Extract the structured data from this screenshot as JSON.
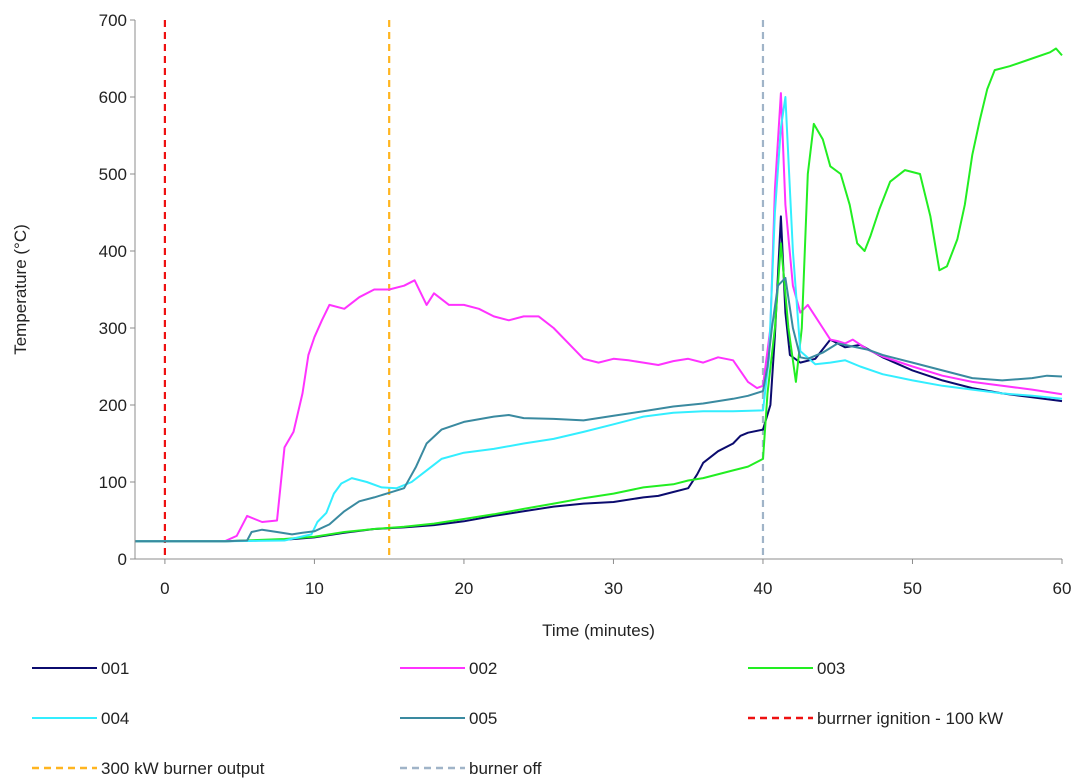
{
  "chart_data": {
    "type": "line",
    "title": "",
    "xlabel": "Time (minutes)",
    "ylabel": "Temperature (°C)",
    "xlim": [
      -2,
      60
    ],
    "ylim": [
      0,
      700
    ],
    "xticks": [
      0,
      10,
      20,
      30,
      40,
      50,
      60
    ],
    "yticks": [
      0,
      100,
      200,
      300,
      400,
      500,
      600,
      700
    ],
    "grid": false,
    "legend_position": "bottom",
    "series": [
      {
        "name": "001",
        "color": "#0b0b6e",
        "points": [
          [
            -2,
            23
          ],
          [
            4,
            23
          ],
          [
            8,
            25
          ],
          [
            10,
            28
          ],
          [
            12,
            34
          ],
          [
            14,
            39
          ],
          [
            16,
            41
          ],
          [
            18,
            44
          ],
          [
            20,
            49
          ],
          [
            22,
            56
          ],
          [
            24,
            62
          ],
          [
            26,
            68
          ],
          [
            28,
            72
          ],
          [
            30,
            74
          ],
          [
            32,
            80
          ],
          [
            33,
            82
          ],
          [
            34,
            87
          ],
          [
            35,
            92
          ],
          [
            35.6,
            110
          ],
          [
            36,
            125
          ],
          [
            37,
            140
          ],
          [
            38,
            150
          ],
          [
            38.5,
            160
          ],
          [
            39,
            164
          ],
          [
            40,
            168
          ],
          [
            40.5,
            200
          ],
          [
            40.8,
            290
          ],
          [
            41.2,
            445
          ],
          [
            41.5,
            320
          ],
          [
            41.8,
            265
          ],
          [
            42.5,
            255
          ],
          [
            43.5,
            260
          ],
          [
            44.5,
            285
          ],
          [
            45.5,
            275
          ],
          [
            46.5,
            278
          ],
          [
            48,
            262
          ],
          [
            50,
            245
          ],
          [
            52,
            232
          ],
          [
            54,
            222
          ],
          [
            56,
            215
          ],
          [
            58,
            210
          ],
          [
            60,
            205
          ]
        ]
      },
      {
        "name": "002",
        "color": "#ff33ff",
        "points": [
          [
            -2,
            23
          ],
          [
            4,
            23
          ],
          [
            4.8,
            30
          ],
          [
            5.5,
            56
          ],
          [
            6,
            52
          ],
          [
            6.5,
            48
          ],
          [
            7.5,
            50
          ],
          [
            8,
            145
          ],
          [
            8.6,
            165
          ],
          [
            9.2,
            215
          ],
          [
            9.6,
            265
          ],
          [
            10,
            288
          ],
          [
            10.5,
            310
          ],
          [
            11,
            330
          ],
          [
            12,
            325
          ],
          [
            13,
            340
          ],
          [
            14,
            350
          ],
          [
            15,
            350
          ],
          [
            16,
            355
          ],
          [
            16.7,
            362
          ],
          [
            17.5,
            330
          ],
          [
            18,
            345
          ],
          [
            19,
            330
          ],
          [
            20,
            330
          ],
          [
            21,
            325
          ],
          [
            22,
            315
          ],
          [
            23,
            310
          ],
          [
            24,
            315
          ],
          [
            25,
            315
          ],
          [
            26,
            300
          ],
          [
            27,
            280
          ],
          [
            28,
            260
          ],
          [
            29,
            255
          ],
          [
            30,
            260
          ],
          [
            31,
            258
          ],
          [
            32,
            255
          ],
          [
            33,
            252
          ],
          [
            34,
            257
          ],
          [
            35,
            260
          ],
          [
            36,
            255
          ],
          [
            37,
            262
          ],
          [
            38,
            258
          ],
          [
            39,
            230
          ],
          [
            39.6,
            222
          ],
          [
            40,
            225
          ],
          [
            40.5,
            300
          ],
          [
            40.8,
            480
          ],
          [
            41.2,
            605
          ],
          [
            41.5,
            460
          ],
          [
            42,
            355
          ],
          [
            42.5,
            320
          ],
          [
            43,
            330
          ],
          [
            43.5,
            315
          ],
          [
            44,
            300
          ],
          [
            44.5,
            285
          ],
          [
            45,
            283
          ],
          [
            45.5,
            280
          ],
          [
            46,
            285
          ],
          [
            47,
            272
          ],
          [
            48,
            263
          ],
          [
            50,
            250
          ],
          [
            52,
            238
          ],
          [
            54,
            230
          ],
          [
            56,
            225
          ],
          [
            58,
            220
          ],
          [
            60,
            214
          ]
        ]
      },
      {
        "name": "003",
        "color": "#22ee22",
        "points": [
          [
            -2,
            23
          ],
          [
            4,
            23
          ],
          [
            8,
            26
          ],
          [
            10,
            29
          ],
          [
            12,
            35
          ],
          [
            14,
            39
          ],
          [
            16,
            42
          ],
          [
            18,
            46
          ],
          [
            20,
            52
          ],
          [
            22,
            58
          ],
          [
            24,
            65
          ],
          [
            26,
            72
          ],
          [
            28,
            79
          ],
          [
            30,
            85
          ],
          [
            32,
            93
          ],
          [
            34,
            97
          ],
          [
            35,
            102
          ],
          [
            36,
            105
          ],
          [
            38,
            115
          ],
          [
            39,
            120
          ],
          [
            40,
            130
          ],
          [
            40.3,
            215
          ],
          [
            40.8,
            300
          ],
          [
            41.2,
            410
          ],
          [
            41.7,
            300
          ],
          [
            42.2,
            230
          ],
          [
            42.6,
            300
          ],
          [
            43,
            500
          ],
          [
            43.4,
            565
          ],
          [
            44,
            545
          ],
          [
            44.5,
            510
          ],
          [
            45.2,
            500
          ],
          [
            45.8,
            460
          ],
          [
            46.3,
            410
          ],
          [
            46.8,
            400
          ],
          [
            47.2,
            420
          ],
          [
            47.8,
            455
          ],
          [
            48.5,
            490
          ],
          [
            49.5,
            505
          ],
          [
            50.5,
            500
          ],
          [
            51.2,
            445
          ],
          [
            51.8,
            375
          ],
          [
            52.3,
            380
          ],
          [
            53,
            415
          ],
          [
            53.5,
            460
          ],
          [
            54,
            525
          ],
          [
            54.5,
            570
          ],
          [
            55,
            610
          ],
          [
            55.5,
            635
          ],
          [
            56.5,
            640
          ],
          [
            58,
            650
          ],
          [
            59.2,
            658
          ],
          [
            59.6,
            663
          ],
          [
            60,
            654
          ]
        ]
      },
      {
        "name": "004",
        "color": "#33eeff",
        "points": [
          [
            -2,
            23
          ],
          [
            4,
            23
          ],
          [
            8,
            24
          ],
          [
            9.8,
            32
          ],
          [
            10.2,
            48
          ],
          [
            10.8,
            60
          ],
          [
            11.3,
            85
          ],
          [
            11.8,
            98
          ],
          [
            12.5,
            105
          ],
          [
            13.5,
            100
          ],
          [
            14.5,
            93
          ],
          [
            15.5,
            92
          ],
          [
            16.5,
            100
          ],
          [
            17.5,
            115
          ],
          [
            18.5,
            130
          ],
          [
            20,
            138
          ],
          [
            22,
            143
          ],
          [
            24,
            150
          ],
          [
            26,
            156
          ],
          [
            28,
            165
          ],
          [
            30,
            175
          ],
          [
            32,
            185
          ],
          [
            34,
            190
          ],
          [
            36,
            192
          ],
          [
            38,
            192
          ],
          [
            40,
            193
          ],
          [
            40.4,
            260
          ],
          [
            40.8,
            450
          ],
          [
            41.2,
            560
          ],
          [
            41.5,
            600
          ],
          [
            42,
            400
          ],
          [
            42.5,
            270
          ],
          [
            43.5,
            253
          ],
          [
            44.5,
            255
          ],
          [
            45.5,
            258
          ],
          [
            46.5,
            250
          ],
          [
            48,
            240
          ],
          [
            50,
            232
          ],
          [
            52,
            225
          ],
          [
            54,
            220
          ],
          [
            56,
            215
          ],
          [
            58,
            212
          ],
          [
            60,
            208
          ]
        ]
      },
      {
        "name": "005",
        "color": "#3a8aa0",
        "points": [
          [
            -2,
            23
          ],
          [
            4,
            23
          ],
          [
            5.5,
            24
          ],
          [
            5.8,
            35
          ],
          [
            6.5,
            38
          ],
          [
            7.5,
            35
          ],
          [
            8.5,
            32
          ],
          [
            9.2,
            34
          ],
          [
            10,
            36
          ],
          [
            11,
            45
          ],
          [
            12,
            62
          ],
          [
            13,
            75
          ],
          [
            14,
            80
          ],
          [
            15,
            86
          ],
          [
            16,
            92
          ],
          [
            16.8,
            120
          ],
          [
            17.5,
            150
          ],
          [
            18.5,
            168
          ],
          [
            20,
            178
          ],
          [
            22,
            185
          ],
          [
            23,
            187
          ],
          [
            24,
            183
          ],
          [
            26,
            182
          ],
          [
            28,
            180
          ],
          [
            30,
            186
          ],
          [
            32,
            192
          ],
          [
            34,
            198
          ],
          [
            36,
            202
          ],
          [
            38,
            208
          ],
          [
            39,
            212
          ],
          [
            40,
            218
          ],
          [
            40.3,
            250
          ],
          [
            40.6,
            300
          ],
          [
            41,
            355
          ],
          [
            41.5,
            365
          ],
          [
            42,
            300
          ],
          [
            42.5,
            262
          ],
          [
            43,
            260
          ],
          [
            44,
            268
          ],
          [
            45,
            280
          ],
          [
            46,
            276
          ],
          [
            47,
            272
          ],
          [
            48,
            265
          ],
          [
            50,
            255
          ],
          [
            52,
            245
          ],
          [
            54,
            235
          ],
          [
            56,
            232
          ],
          [
            58,
            235
          ],
          [
            59,
            238
          ],
          [
            60,
            237
          ]
        ]
      }
    ],
    "reference_lines": [
      {
        "name": "burrner ignition - 100 kW",
        "x": 0,
        "color": "#ee1111",
        "dash": "7,5"
      },
      {
        "name": "300 kW burner output",
        "x": 15,
        "color": "#ffb520",
        "dash": "7,5"
      },
      {
        "name": "burner off",
        "x": 40,
        "color": "#a0b4c8",
        "dash": "7,5"
      }
    ]
  }
}
